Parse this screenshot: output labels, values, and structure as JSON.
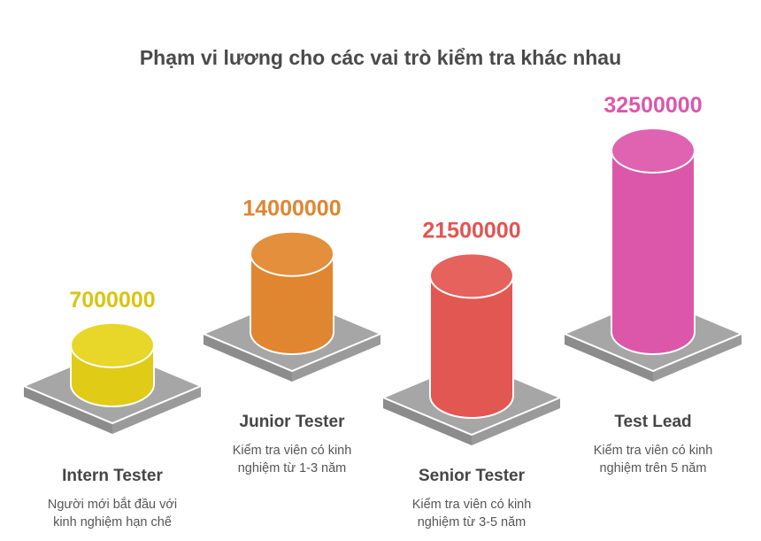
{
  "chart_data": {
    "type": "bar",
    "title": "Phạm vi lương cho các vai trò kiểm tra khác nhau",
    "categories": [
      "Intern Tester",
      "Junior Tester",
      "Senior Tester",
      "Test Lead"
    ],
    "values": [
      7000000,
      14000000,
      21500000,
      32500000
    ],
    "value_labels": [
      "7000000",
      "14000000",
      "21500000",
      "32500000"
    ],
    "descriptions": [
      [
        "Người mới bắt đầu với",
        "kinh nghiệm hạn chế"
      ],
      [
        "Kiểm tra viên có kinh",
        "nghiệm từ 1-3 năm"
      ],
      [
        "Kiểm tra viên có kinh",
        "nghiệm từ 3-5 năm"
      ],
      [
        "Kiểm tra viên có kinh",
        "nghiệm trên 5 năm"
      ]
    ],
    "colors": [
      "#e0cc16",
      "#e08530",
      "#e35752",
      "#dc57a9"
    ],
    "top_colors": [
      "#e8d628",
      "#e48f3c",
      "#e6625d",
      "#e063b1"
    ],
    "label_colors": [
      "#d8c512",
      "#e08530",
      "#e05552",
      "#dc57a9"
    ],
    "platform_color": "#a6a6a6"
  }
}
